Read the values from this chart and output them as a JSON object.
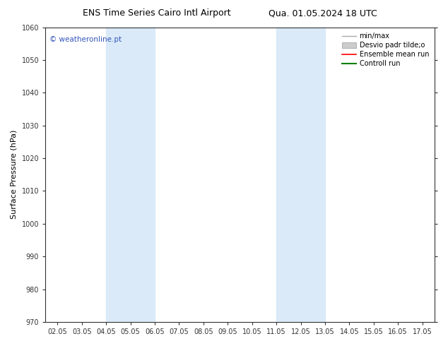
{
  "title_left": "ENS Time Series Cairo Intl Airport",
  "title_right": "Qua. 01.05.2024 18 UTC",
  "ylabel": "Surface Pressure (hPa)",
  "ylim": [
    970,
    1060
  ],
  "yticks": [
    970,
    980,
    990,
    1000,
    1010,
    1020,
    1030,
    1040,
    1050,
    1060
  ],
  "xlim": [
    0,
    15
  ],
  "xtick_labels": [
    "02.05",
    "03.05",
    "04.05",
    "05.05",
    "06.05",
    "07.05",
    "08.05",
    "09.05",
    "10.05",
    "11.05",
    "12.05",
    "13.05",
    "14.05",
    "15.05",
    "16.05",
    "17.05"
  ],
  "xtick_positions": [
    0,
    1,
    2,
    3,
    4,
    5,
    6,
    7,
    8,
    9,
    10,
    11,
    12,
    13,
    14,
    15
  ],
  "shaded_bands": [
    {
      "xmin": 2,
      "xmax": 4,
      "color": "#daeaf8"
    },
    {
      "xmin": 9,
      "xmax": 11,
      "color": "#daeaf8"
    }
  ],
  "watermark_text": "© weatheronline.pt",
  "watermark_color": "#3355bb",
  "legend_entries": [
    {
      "label": "min/max",
      "color": "#aaaaaa",
      "lw": 1.0,
      "patch": false
    },
    {
      "label": "Desvio padr tilde;o",
      "color": "#cccccc",
      "lw": 8,
      "patch": true
    },
    {
      "label": "Ensemble mean run",
      "color": "red",
      "lw": 1.2,
      "patch": false
    },
    {
      "label": "Controll run",
      "color": "green",
      "lw": 1.5,
      "patch": false
    }
  ],
  "bg_color": "#ffffff",
  "plot_bg_color": "#ffffff",
  "spine_color": "#333333",
  "title_fontsize": 9,
  "tick_fontsize": 7,
  "label_fontsize": 8,
  "legend_fontsize": 7
}
